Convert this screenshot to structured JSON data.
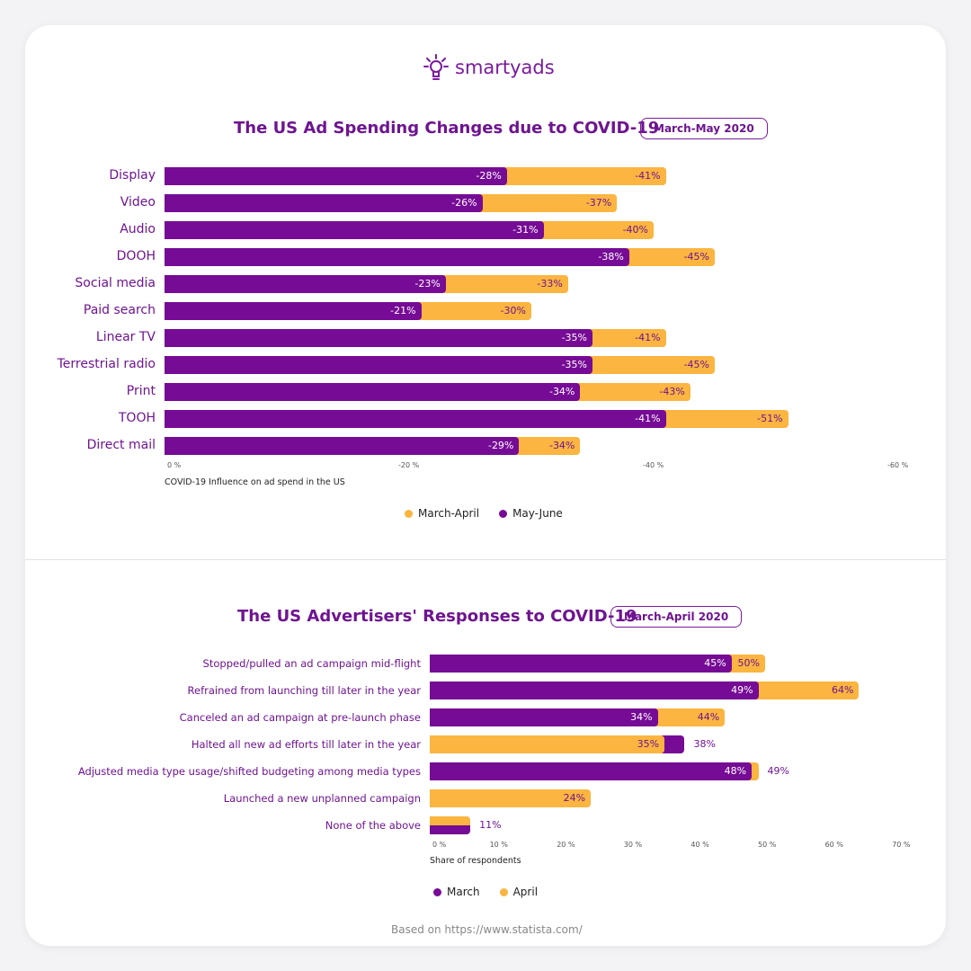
{
  "logo": {
    "text": "smartyads"
  },
  "colors": {
    "purple": "#760b95",
    "orange": "#fbb540"
  },
  "footer": {
    "source": "Based on https://www.statista.com/"
  },
  "chart_data": [
    {
      "type": "bar",
      "orientation": "horizontal",
      "title": "The US Ad Spending Changes due to COVID-19",
      "badge": "March-May 2020",
      "categories": [
        "Display",
        "Video",
        "Audio",
        "DOOH",
        "Social media",
        "Paid search",
        "Linear TV",
        "Terrestrial radio",
        "Print",
        "TOOH",
        "Direct mail"
      ],
      "series": [
        {
          "name": "March-April",
          "color": "#fbb540",
          "values": [
            -41,
            -37,
            -40,
            -45,
            -33,
            -30,
            -41,
            -45,
            -43,
            -51,
            -34
          ]
        },
        {
          "name": "May-June",
          "color": "#760b95",
          "values": [
            -28,
            -26,
            -31,
            -38,
            -23,
            -21,
            -35,
            -35,
            -34,
            -41,
            -29
          ]
        }
      ],
      "xlabel": "COVID-19 Influence on ad spend in the US",
      "xlim": [
        0,
        -60
      ],
      "ticks": [
        "0 %",
        "-20 %",
        "-40 %",
        "-60 %"
      ],
      "legend": "bottom"
    },
    {
      "type": "bar",
      "orientation": "horizontal",
      "title": "The US Advertisers' Responses to COVID-19",
      "badge": "March-April 2020",
      "categories": [
        "Stopped/pulled an ad campaign mid-flight",
        "Refrained from launching till later in the year",
        "Canceled an ad campaign at pre-launch phase",
        "Halted all new ad efforts till later in the year",
        "Adjusted media type usage/shifted budgeting among media types",
        "Launched a new unplanned campaign",
        "None of the above"
      ],
      "series": [
        {
          "name": "March",
          "color": "#760b95",
          "values": [
            45,
            49,
            34,
            38,
            48,
            null,
            11
          ]
        },
        {
          "name": "April",
          "color": "#fbb540",
          "values": [
            50,
            64,
            44,
            35,
            49,
            24,
            11
          ]
        }
      ],
      "xlabel": "Share of respondents",
      "xlim": [
        0,
        70
      ],
      "ticks": [
        "0 %",
        "10 %",
        "20 %",
        "30 %",
        "40 %",
        "50 %",
        "60 %",
        "70 %"
      ],
      "legend": "bottom"
    }
  ]
}
